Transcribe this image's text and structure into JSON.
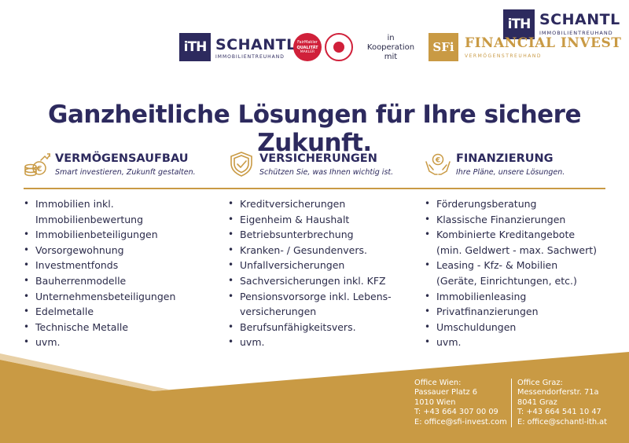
{
  "corner_logo": {
    "mark": "iTH",
    "brand": "SCHANTL",
    "sub": "IMMOBILIENTREUHAND"
  },
  "header": {
    "logo": {
      "mark": "iTH",
      "brand": "SCHANTL",
      "sub": "IMMOBILIENTREUHAND"
    },
    "seal_quality": {
      "line1": "FairMakler",
      "line2": "QUALITÄT",
      "line3": "MAKLER"
    },
    "cooperation": [
      "in",
      "Kooperation",
      "mit"
    ],
    "partner": {
      "mark": "SFi",
      "brand": "FINANCIAL INVEST",
      "sub": "VERMÖGENSTREUHAND"
    }
  },
  "headline": "Ganzheitliche Lösungen für Ihre sichere Zukunft.",
  "columns": [
    {
      "icon": "coins-growth-icon",
      "title": "VERMÖGENSAUFBAU",
      "slogan": "Smart investieren, Zukunft gestalten.",
      "items": [
        "Immobilien inkl.",
        "Immobilienbewertung",
        "Immobilienbeteiligungen",
        "Vorsorgewohnung",
        "Investmentfonds",
        "Bauherrenmodelle",
        "Unternehmensbeteiligungen",
        "Edelmetalle",
        "Technische Metalle",
        "uvm."
      ]
    },
    {
      "icon": "shield-check-icon",
      "title": "VERSICHERUNGEN",
      "slogan": "Schützen Sie, was Ihnen wichtig ist.",
      "items": [
        "Kreditversicherungen",
        "Eigenheim & Haushalt",
        "Betriebsunterbrechung",
        "Kranken- / Gesundenvers.",
        "Unfallversicherungen",
        "Sachversicherungen inkl. KFZ",
        "Pensionsvorsorge inkl. Lebens-",
        "versicherungen",
        "Berufsunfähigkeitsvers.",
        "uvm."
      ]
    },
    {
      "icon": "hands-euro-icon",
      "title": "FINANZIERUNG",
      "slogan": "Ihre Pläne, unsere Lösungen.",
      "items": [
        "Förderungsberatung",
        "Klassische Finanzierungen",
        "Kombinierte Kreditangebote",
        "(min. Geldwert - max. Sachwert)",
        "Leasing - Kfz- & Mobilien",
        "(Geräte, Einrichtungen, etc.)",
        "Immobilienleasing",
        "Privatfinanzierungen",
        "Umschuldungen",
        "uvm."
      ]
    }
  ],
  "offices": [
    {
      "title": "Office Wien:",
      "street": "Passauer Platz 6",
      "city": "1010 Wien",
      "phone": "T: +43 664 307 00 09",
      "email": "E: office@sfi-invest.com"
    },
    {
      "title": "Office Graz:",
      "street": "Messendorferstr. 71a",
      "city": "8041 Graz",
      "phone": "T: +43 664 541 10 47",
      "email": "E: office@schantl-ith.at"
    }
  ],
  "colors": {
    "navy": "#2d2a5e",
    "gold": "#c99a44",
    "seal_red": "#d0203a"
  }
}
